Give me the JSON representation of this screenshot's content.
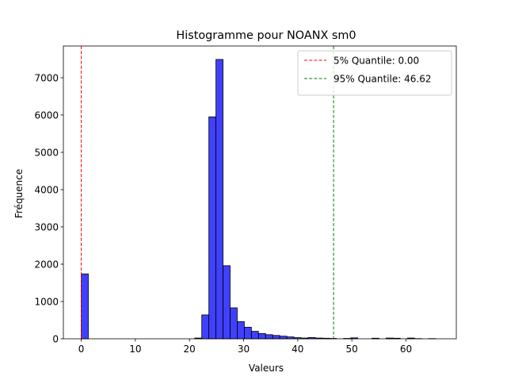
{
  "chart_data": {
    "type": "bar",
    "title": "Histogramme pour NOANX sm0",
    "xlabel": "Valeurs",
    "ylabel": "Fréquence",
    "xlim": [
      -3.3,
      69.3
    ],
    "ylim": [
      0,
      7850
    ],
    "x_ticks": [
      0,
      10,
      20,
      30,
      40,
      50,
      60
    ],
    "y_ticks": [
      0,
      1000,
      2000,
      3000,
      4000,
      5000,
      6000,
      7000
    ],
    "bin_width": 1.31,
    "bins": [
      {
        "x0": 0.0,
        "count": 1740
      },
      {
        "x0": 20.96,
        "count": 20
      },
      {
        "x0": 22.27,
        "count": 640
      },
      {
        "x0": 23.58,
        "count": 5950
      },
      {
        "x0": 24.89,
        "count": 7490
      },
      {
        "x0": 26.2,
        "count": 1960
      },
      {
        "x0": 27.51,
        "count": 830
      },
      {
        "x0": 28.82,
        "count": 460
      },
      {
        "x0": 30.13,
        "count": 310
      },
      {
        "x0": 31.44,
        "count": 200
      },
      {
        "x0": 32.75,
        "count": 140
      },
      {
        "x0": 34.06,
        "count": 110
      },
      {
        "x0": 35.37,
        "count": 90
      },
      {
        "x0": 36.68,
        "count": 70
      },
      {
        "x0": 37.99,
        "count": 50
      },
      {
        "x0": 39.3,
        "count": 30
      },
      {
        "x0": 40.61,
        "count": 20
      },
      {
        "x0": 41.92,
        "count": 35
      },
      {
        "x0": 43.23,
        "count": 20
      },
      {
        "x0": 44.54,
        "count": 15
      },
      {
        "x0": 45.85,
        "count": 10
      },
      {
        "x0": 48.47,
        "count": 10
      },
      {
        "x0": 49.78,
        "count": 25
      },
      {
        "x0": 53.71,
        "count": 15
      },
      {
        "x0": 56.33,
        "count": 20
      },
      {
        "x0": 57.64,
        "count": 15
      },
      {
        "x0": 60.26,
        "count": 20
      },
      {
        "x0": 61.57,
        "count": 5
      },
      {
        "x0": 64.19,
        "count": 5
      }
    ],
    "quantiles": [
      {
        "label": "5% Quantile: 0.00",
        "value": 0.0,
        "color": "#ff0000"
      },
      {
        "label": "95% Quantile: 46.62",
        "value": 46.62,
        "color": "#008000"
      }
    ],
    "bar_color": "#0000ff",
    "legend_position": "top-right",
    "grid": false
  }
}
